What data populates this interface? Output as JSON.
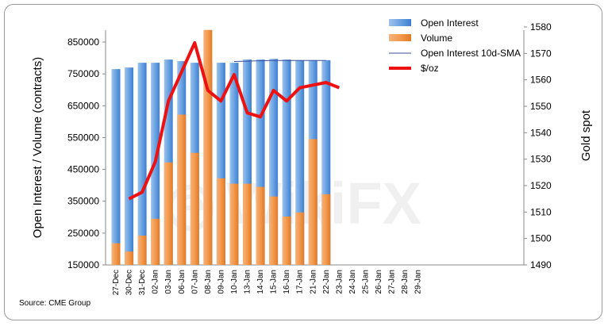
{
  "chart_data": {
    "type": "bar+line",
    "categories": [
      "27-Dec",
      "30-Dec",
      "31-Dec",
      "02-Jan",
      "03-Jan",
      "06-Jan",
      "07-Jan",
      "08-Jan",
      "09-Jan",
      "10-Jan",
      "13-Jan",
      "14-Jan",
      "15-Jan",
      "16-Jan",
      "17-Jan",
      "21-Jan",
      "22-Jan",
      "23-Jan",
      "24-Jan",
      "25-Jan",
      "26-Jan",
      "27-Jan",
      "28-Jan",
      "29-Jan"
    ],
    "series": [
      {
        "name": "Open Interest",
        "type": "bar",
        "axis": "left",
        "color": "#5b9bd5",
        "values": [
          765000,
          770000,
          785000,
          785000,
          795000,
          790000,
          785000,
          785000,
          785000,
          785000,
          795000,
          795000,
          797000,
          795000,
          793000,
          793000,
          793000,
          null,
          null,
          null,
          null,
          null,
          null,
          null
        ]
      },
      {
        "name": "Volume",
        "type": "bar",
        "axis": "left",
        "color": "#f79646",
        "values": [
          218000,
          192000,
          242000,
          295000,
          472000,
          622000,
          502000,
          888000,
          422000,
          405000,
          405000,
          395000,
          365000,
          302000,
          315000,
          545000,
          372000,
          null,
          null,
          null,
          null,
          null,
          null,
          null
        ]
      },
      {
        "name": "Open Interest 10d-SMA",
        "type": "line",
        "axis": "left",
        "color": "#3f4fa0",
        "values": [
          null,
          null,
          null,
          null,
          null,
          null,
          null,
          null,
          null,
          789000,
          790000,
          791000,
          792000,
          792000,
          792000,
          792000,
          792000,
          null,
          null,
          null,
          null,
          null,
          null,
          null
        ]
      },
      {
        "name": "$/oz",
        "type": "line",
        "axis": "right",
        "color": "#ee1111",
        "values": [
          null,
          1515,
          1517.5,
          1529,
          1552,
          1563,
          1574,
          1556,
          1552,
          1562,
          1547.5,
          1546,
          1556,
          1552,
          1557,
          1558,
          1559,
          1557,
          null,
          null,
          null,
          null,
          null,
          null
        ]
      }
    ],
    "y_left": {
      "label": "Open Interest / Volume (contracts)",
      "range": [
        150000,
        900000
      ],
      "ticks": [
        "150000",
        "250000",
        "350000",
        "450000",
        "550000",
        "650000",
        "750000",
        "850000"
      ]
    },
    "y_right": {
      "label": "Gold spot",
      "range": [
        1490,
        1580
      ],
      "ticks": [
        "1490",
        "1500",
        "1510",
        "1520",
        "1530",
        "1540",
        "1550",
        "1560",
        "1570",
        "1580"
      ]
    },
    "legend_placement": "top-right",
    "grid": false,
    "source_note": "Source: CME Group"
  }
}
